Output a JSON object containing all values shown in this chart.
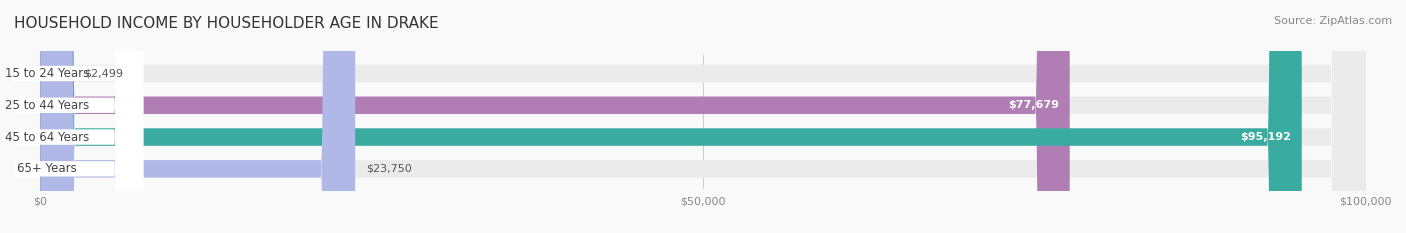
{
  "title": "HOUSEHOLD INCOME BY HOUSEHOLDER AGE IN DRAKE",
  "source": "Source: ZipAtlas.com",
  "categories": [
    "15 to 24 Years",
    "25 to 44 Years",
    "45 to 64 Years",
    "65+ Years"
  ],
  "values": [
    2499,
    77679,
    95192,
    23750
  ],
  "value_labels": [
    "$2,499",
    "$77,679",
    "$95,192",
    "$23,750"
  ],
  "bar_colors": [
    "#a8c4e0",
    "#b07db5",
    "#3aaba0",
    "#b0b8e8"
  ],
  "track_color": "#ebebeb",
  "label_bg_color": "#ffffff",
  "xlim": [
    0,
    100000
  ],
  "xticks": [
    0,
    50000,
    100000
  ],
  "xtick_labels": [
    "$0",
    "$50,000",
    "$100,000"
  ],
  "title_fontsize": 11,
  "source_fontsize": 8,
  "bar_height": 0.55,
  "background_color": "#f9f9f9"
}
